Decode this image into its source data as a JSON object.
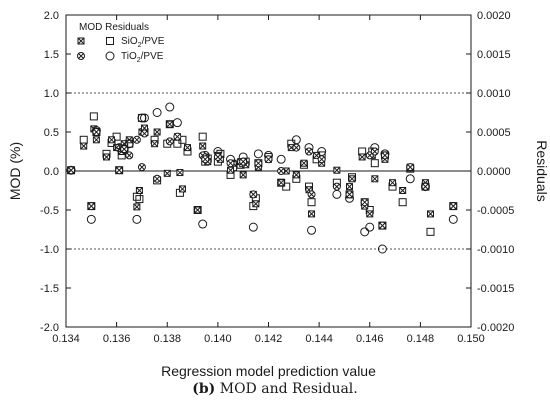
{
  "chart_data": {
    "type": "scatter",
    "xlabel": "Regression model prediction value",
    "ylabel": "MOD (%)",
    "y2label": "Residuals",
    "xlim": [
      0.134,
      0.15
    ],
    "ylim": [
      -2.0,
      2.0
    ],
    "y2lim": [
      -0.002,
      0.002
    ],
    "x_ticks": [
      0.134,
      0.136,
      0.138,
      0.14,
      0.142,
      0.144,
      0.146,
      0.148,
      0.15
    ],
    "x_tick_labels": [
      "0.134",
      "0.136",
      "0.138",
      "0.140",
      "0.142",
      "0.144",
      "0.146",
      "0.148",
      "0.150"
    ],
    "y_ticks": [
      -2.0,
      -1.5,
      -1.0,
      -0.5,
      0.0,
      0.5,
      1.0,
      1.5,
      2.0
    ],
    "y_tick_labels": [
      "-2.0",
      "-1.5",
      "-1.0",
      "-0.5",
      "0.0",
      "0.5",
      "1.0",
      "1.5",
      "2.0"
    ],
    "y2_ticks": [
      -0.002,
      -0.0015,
      -0.001,
      -0.0005,
      0,
      0.0005,
      0.001,
      0.0015,
      0.002
    ],
    "y2_tick_labels": [
      "-0.0020",
      "-0.0015",
      "-0.0010",
      "-0.0005",
      "0.0000",
      "0.0005",
      "0.0010",
      "0.0015",
      "0.0020"
    ],
    "reference_lines_y": [
      1.0,
      0.0,
      -1.0
    ],
    "legend": {
      "title": "MOD Residuals",
      "position": "top-left",
      "entries": [
        {
          "label_main": "SiO",
          "label_sub": "2",
          "label_rest": "/PVE"
        },
        {
          "label_main": "TiO",
          "label_sub": "2",
          "label_rest": "/PVE"
        }
      ]
    },
    "series": [
      {
        "name": "SiO2/PVE",
        "mod_marker": "crossed-square",
        "residual_marker": "square",
        "points": [
          [
            0.1342,
            0.01,
            0.01
          ],
          [
            0.1347,
            0.32,
            0.4
          ],
          [
            0.135,
            -0.45,
            -0.45
          ],
          [
            0.1351,
            0.54,
            0.7
          ],
          [
            0.1352,
            0.4,
            0.5
          ],
          [
            0.1356,
            0.18,
            0.22
          ],
          [
            0.1358,
            0.4,
            0.36
          ],
          [
            0.136,
            0.3,
            0.44
          ],
          [
            0.1361,
            0.01,
            0.01
          ],
          [
            0.1362,
            0.25,
            0.2
          ],
          [
            0.1363,
            0.35,
            0.3
          ],
          [
            0.1365,
            0.4,
            0.35
          ],
          [
            0.1368,
            -0.46,
            -0.33
          ],
          [
            0.1369,
            -0.25,
            -0.36
          ],
          [
            0.137,
            0.5,
            0.68
          ],
          [
            0.1371,
            0.55,
            0.5
          ],
          [
            0.1375,
            0.35,
            0.4
          ],
          [
            0.1376,
            0.5,
            -0.12
          ],
          [
            0.138,
            -0.03,
            0.35
          ],
          [
            0.1381,
            0.6,
            0.6
          ],
          [
            0.1384,
            0.44,
            0.35
          ],
          [
            0.1385,
            -0.02,
            -0.28
          ],
          [
            0.1386,
            -0.23,
            0.4
          ],
          [
            0.1388,
            0.3,
            0.25
          ],
          [
            0.1392,
            -0.5,
            -0.5
          ],
          [
            0.1394,
            0.32,
            0.44
          ],
          [
            0.1395,
            0.18,
            0.12
          ],
          [
            0.1396,
            0.12,
            0.16
          ],
          [
            0.14,
            0.2,
            0.12
          ],
          [
            0.1401,
            0.15,
            0.22
          ],
          [
            0.1405,
            0.01,
            -0.05
          ],
          [
            0.1406,
            0.1,
            0.05
          ],
          [
            0.1409,
            0.12,
            0.08
          ],
          [
            0.141,
            -0.05,
            0.1
          ],
          [
            0.1411,
            0.08,
            0.12
          ],
          [
            0.1414,
            -0.3,
            -0.45
          ],
          [
            0.1415,
            -0.42,
            -0.35
          ],
          [
            0.1416,
            0.05,
            0.1
          ],
          [
            0.142,
            0.15,
            0.18
          ],
          [
            0.1425,
            -0.15,
            -0.15
          ],
          [
            0.1427,
            0.0,
            -0.2
          ],
          [
            0.1429,
            0.3,
            0.35
          ],
          [
            0.1431,
            -0.05,
            -0.1
          ],
          [
            0.1434,
            0.1,
            0.08
          ],
          [
            0.1436,
            -0.24,
            -0.2
          ],
          [
            0.1437,
            -0.55,
            -0.4
          ],
          [
            0.1439,
            0.2,
            0.15
          ],
          [
            0.1441,
            0.1,
            0.2
          ],
          [
            0.1447,
            0.01,
            -0.15
          ],
          [
            0.1452,
            -0.2,
            -0.3
          ],
          [
            0.1453,
            -0.1,
            -0.08
          ],
          [
            0.1457,
            0.18,
            0.25
          ],
          [
            0.1458,
            -0.45,
            -0.4
          ],
          [
            0.146,
            -0.55,
            -0.5
          ],
          [
            0.1461,
            0.2,
            0.25
          ],
          [
            0.1462,
            -0.1,
            0.1
          ],
          [
            0.1465,
            -0.7,
            -0.7
          ],
          [
            0.1466,
            0.15,
            0.2
          ],
          [
            0.1469,
            -0.15,
            -0.2
          ],
          [
            0.1473,
            -0.25,
            -0.4
          ],
          [
            0.1476,
            0.05,
            0.03
          ],
          [
            0.1482,
            -0.15,
            -0.2
          ],
          [
            0.1484,
            -0.55,
            -0.78
          ],
          [
            0.1493,
            -0.45,
            -0.45
          ]
        ]
      },
      {
        "name": "TiO2/PVE",
        "mod_marker": "crossed-circle",
        "residual_marker": "circle",
        "points": [
          [
            0.1342,
            0.01,
            0.01
          ],
          [
            0.135,
            -0.45,
            -0.62
          ],
          [
            0.1352,
            0.5,
            0.52
          ],
          [
            0.1361,
            0.01,
            0.3
          ],
          [
            0.1363,
            0.28,
            0.28
          ],
          [
            0.1365,
            0.2,
            0.35
          ],
          [
            0.1368,
            0.4,
            -0.62
          ],
          [
            0.137,
            0.05,
            0.68
          ],
          [
            0.1371,
            0.48,
            0.68
          ],
          [
            0.1376,
            -0.1,
            0.75
          ],
          [
            0.1381,
            0.38,
            0.82
          ],
          [
            0.1384,
            0.44,
            0.62
          ],
          [
            0.1394,
            0.2,
            -0.68
          ],
          [
            0.1395,
            0.15,
            0.2
          ],
          [
            0.14,
            0.18,
            0.25
          ],
          [
            0.1405,
            0.1,
            0.15
          ],
          [
            0.141,
            0.12,
            0.18
          ],
          [
            0.1414,
            -0.3,
            -0.72
          ],
          [
            0.1416,
            0.1,
            0.22
          ],
          [
            0.142,
            0.15,
            0.2
          ],
          [
            0.1425,
            0.0,
            0.15
          ],
          [
            0.1431,
            0.3,
            0.4
          ],
          [
            0.1436,
            0.25,
            0.3
          ],
          [
            0.1437,
            -0.3,
            -0.76
          ],
          [
            0.1441,
            0.15,
            0.25
          ],
          [
            0.1447,
            -0.2,
            -0.3
          ],
          [
            0.1452,
            -0.3,
            -0.35
          ],
          [
            0.1458,
            -0.4,
            -0.78
          ],
          [
            0.146,
            0.2,
            -0.72
          ],
          [
            0.1462,
            0.25,
            0.3
          ],
          [
            0.1465,
            -0.7,
            -1.0
          ],
          [
            0.1466,
            0.2,
            0.22
          ],
          [
            0.1476,
            0.05,
            -0.1
          ],
          [
            0.1482,
            -0.2,
            -0.2
          ],
          [
            0.1493,
            -0.45,
            -0.62
          ]
        ]
      }
    ]
  },
  "caption": {
    "label": "(b)",
    "text": " MOD and Residual."
  }
}
